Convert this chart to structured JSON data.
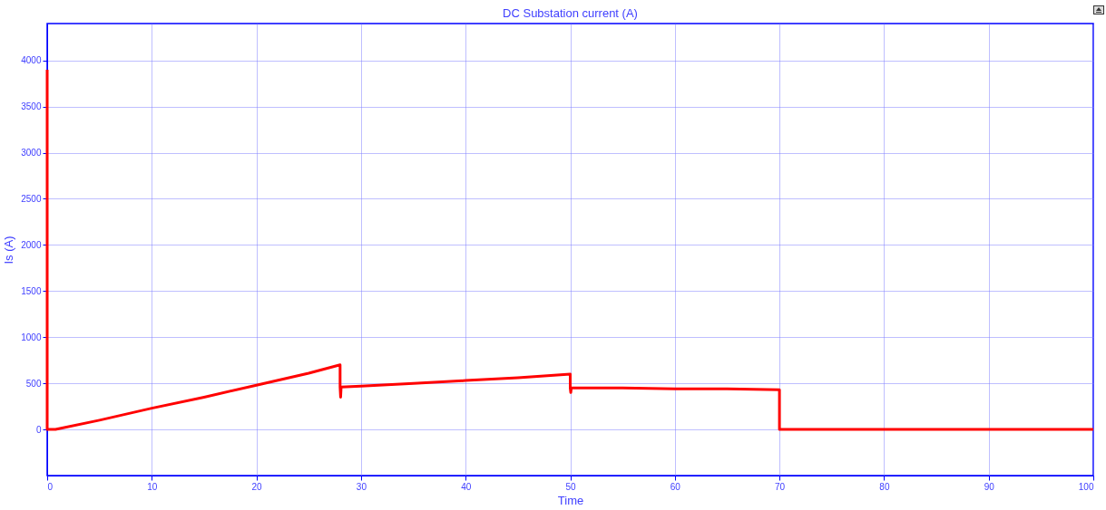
{
  "chart_data": {
    "type": "line",
    "title": "DC Substation current (A)",
    "xlabel": "Time",
    "ylabel": "Is (A)",
    "xlim": [
      0,
      100
    ],
    "xticks": [
      0,
      10,
      20,
      30,
      40,
      50,
      60,
      70,
      80,
      90,
      100
    ],
    "ylim": [
      -500,
      4400
    ],
    "yticks": [
      0,
      500,
      1000,
      1500,
      2000,
      2500,
      3000,
      3500,
      4000
    ],
    "grid": true,
    "marker": "none",
    "line_style": "solid",
    "series": [
      {
        "color": "#ff0000",
        "x": [
          0,
          0,
          0.8,
          5,
          10,
          15,
          20,
          25,
          28,
          28,
          28.05,
          28.1,
          30,
          35,
          40,
          45,
          50,
          50,
          50.05,
          50.1,
          55,
          60,
          65,
          70,
          70,
          75,
          80,
          85,
          90,
          95,
          100
        ],
        "values": [
          3900,
          0,
          0,
          100,
          230,
          350,
          480,
          610,
          700,
          460,
          350,
          460,
          470,
          500,
          530,
          560,
          600,
          450,
          400,
          450,
          450,
          440,
          440,
          430,
          0,
          0,
          0,
          0,
          0,
          0,
          0
        ]
      }
    ]
  }
}
